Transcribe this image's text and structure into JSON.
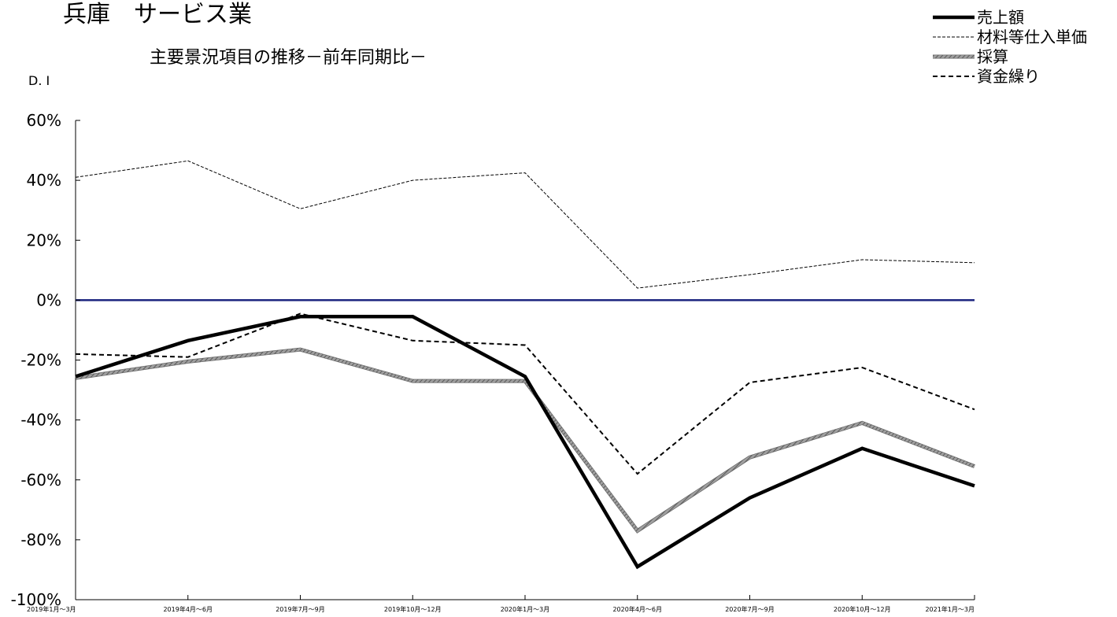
{
  "chart_data": {
    "type": "line",
    "title": "兵庫　サービス業",
    "subtitle": "主要景況項目の推移－前年同期比－",
    "ylabel": "D. I",
    "xlabel": "",
    "ylim": [
      -100,
      60
    ],
    "y_ticks": [
      "60%",
      "40%",
      "20%",
      "0%",
      "-20%",
      "-40%",
      "-60%",
      "-80%",
      "-100%"
    ],
    "y_tick_values": [
      60,
      40,
      20,
      0,
      -20,
      -40,
      -60,
      -80,
      -100
    ],
    "categories": [
      "2019年1月～3月",
      "2019年4月～6月",
      "2019年7月～9月",
      "2019年10月～12月",
      "2020年1月～3月",
      "2020年4月～6月",
      "2020年7月～9月",
      "2020年10月～12月",
      "2021年1月～3月"
    ],
    "series": [
      {
        "name": "売上額",
        "style": "thick-solid",
        "color": "#000000",
        "values": [
          -25.5,
          -13.5,
          -5.5,
          -5.5,
          -25.5,
          -89,
          -66,
          -49.5,
          -62
        ]
      },
      {
        "name": "材料等仕入単価",
        "style": "thin-dashed",
        "color": "#000000",
        "values": [
          41,
          46.5,
          30.5,
          40,
          42.5,
          4,
          8.5,
          13.5,
          12.5
        ]
      },
      {
        "name": "採算",
        "style": "thick-hatched",
        "color": "#808080",
        "values": [
          -26,
          -20.5,
          -16.5,
          -27,
          -27,
          -77,
          -52.5,
          -41,
          -55.5
        ]
      },
      {
        "name": "資金繰り",
        "style": "medium-dashed",
        "color": "#000000",
        "values": [
          -18,
          -19,
          -4.5,
          -13.5,
          -15,
          -58,
          -27.5,
          -22.5,
          -36.5
        ]
      }
    ],
    "zero_line_color": "#1a237e",
    "grid": false,
    "legend_position": "top-right"
  }
}
